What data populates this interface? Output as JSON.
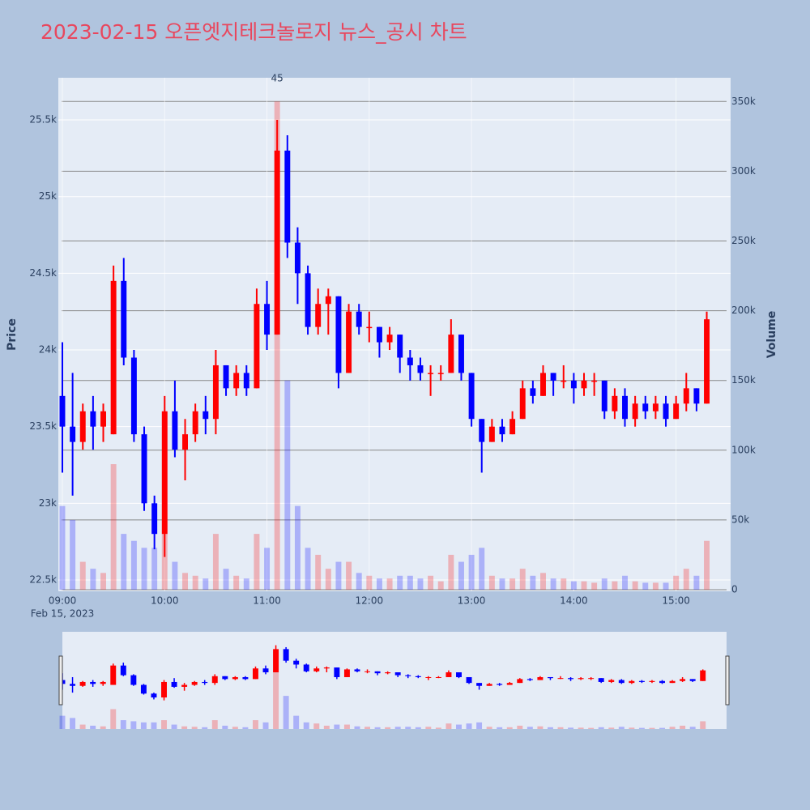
{
  "chart_data": {
    "type": "candlestick",
    "title": "2023-02-15 오픈엣지테크놀로지 뉴스_공시 차트",
    "y_label": "Price",
    "y2_label": "Volume",
    "x_date_label": "Feb 15, 2023",
    "increasing_color": "#ff0000",
    "decreasing_color": "#0000ff",
    "x": [
      "09:00",
      "09:06",
      "09:12",
      "09:18",
      "09:24",
      "09:30",
      "09:36",
      "09:42",
      "09:48",
      "09:54",
      "10:00",
      "10:06",
      "10:12",
      "10:18",
      "10:24",
      "10:30",
      "10:36",
      "10:42",
      "10:48",
      "10:54",
      "11:00",
      "11:06",
      "11:12",
      "11:18",
      "11:24",
      "11:30",
      "11:36",
      "11:42",
      "11:48",
      "11:54",
      "12:00",
      "12:06",
      "12:12",
      "12:18",
      "12:24",
      "12:30",
      "12:36",
      "12:42",
      "12:48",
      "12:54",
      "13:00",
      "13:06",
      "13:12",
      "13:18",
      "13:24",
      "13:30",
      "13:36",
      "13:42",
      "13:48",
      "13:54",
      "14:00",
      "14:06",
      "14:12",
      "14:18",
      "14:24",
      "14:30",
      "14:36",
      "14:42",
      "14:48",
      "14:54",
      "15:00",
      "15:06",
      "15:12",
      "15:18"
    ],
    "open": [
      23700,
      23500,
      23400,
      23600,
      23500,
      23450,
      24450,
      23950,
      23450,
      23000,
      22800,
      23600,
      23350,
      23450,
      23600,
      23550,
      23900,
      23750,
      23850,
      23750,
      24300,
      24100,
      25300,
      24700,
      24500,
      24150,
      24300,
      24350,
      23850,
      24250,
      24150,
      24150,
      24050,
      24100,
      23950,
      23900,
      23850,
      23850,
      23850,
      24100,
      23850,
      23550,
      23400,
      23500,
      23450,
      23550,
      23750,
      23700,
      23850,
      23800,
      23800,
      23750,
      23800,
      23800,
      23600,
      23700,
      23550,
      23650,
      23600,
      23650,
      23550,
      23650,
      23750,
      23650
    ],
    "high": [
      24050,
      23850,
      23650,
      23700,
      23650,
      24550,
      24600,
      24000,
      23500,
      23050,
      23700,
      23800,
      23550,
      23650,
      23700,
      24000,
      23900,
      23900,
      23900,
      24400,
      24450,
      25500,
      25400,
      24800,
      24550,
      24400,
      24400,
      24350,
      24300,
      24300,
      24250,
      24150,
      24150,
      24100,
      24000,
      23950,
      23900,
      23900,
      24200,
      24100,
      23850,
      23550,
      23550,
      23550,
      23600,
      23800,
      23800,
      23900,
      23850,
      23900,
      23850,
      23850,
      23850,
      23800,
      23750,
      23750,
      23700,
      23700,
      23700,
      23700,
      23700,
      23850,
      23750,
      24250
    ],
    "low": [
      23200,
      23050,
      23350,
      23350,
      23400,
      23450,
      23900,
      23400,
      22950,
      22700,
      22650,
      23300,
      23150,
      23400,
      23450,
      23450,
      23700,
      23700,
      23700,
      23750,
      24000,
      24100,
      24600,
      24300,
      24100,
      24100,
      24100,
      23750,
      23850,
      24100,
      24050,
      23950,
      24000,
      23850,
      23800,
      23800,
      23700,
      23800,
      23850,
      23800,
      23500,
      23200,
      23400,
      23400,
      23450,
      23550,
      23650,
      23700,
      23700,
      23750,
      23650,
      23700,
      23700,
      23550,
      23550,
      23500,
      23500,
      23550,
      23550,
      23500,
      23550,
      23600,
      23600,
      23650
    ],
    "close": [
      23500,
      23400,
      23600,
      23500,
      23600,
      24450,
      23950,
      23450,
      23000,
      22800,
      23600,
      23350,
      23450,
      23600,
      23550,
      23900,
      23750,
      23850,
      23750,
      24300,
      24100,
      25300,
      24700,
      24500,
      24150,
      24300,
      24350,
      23850,
      24250,
      24150,
      24150,
      24050,
      24100,
      23950,
      23900,
      23850,
      23850,
      23850,
      24100,
      23850,
      23550,
      23400,
      23500,
      23450,
      23550,
      23750,
      23700,
      23850,
      23800,
      23800,
      23750,
      23800,
      23800,
      23600,
      23700,
      23550,
      23650,
      23600,
      23650,
      23550,
      23650,
      23750,
      23650,
      24200
    ],
    "volume": [
      60000,
      50000,
      20000,
      15000,
      12000,
      90000,
      40000,
      35000,
      30000,
      30000,
      40000,
      20000,
      12000,
      10000,
      8000,
      40000,
      15000,
      10000,
      8000,
      40000,
      30000,
      350000,
      150000,
      60000,
      30000,
      25000,
      15000,
      20000,
      20000,
      12000,
      10000,
      8000,
      8000,
      10000,
      10000,
      8000,
      10000,
      6000,
      25000,
      20000,
      25000,
      30000,
      10000,
      8000,
      8000,
      15000,
      10000,
      12000,
      8000,
      8000,
      6000,
      6000,
      5000,
      8000,
      6000,
      10000,
      6000,
      5000,
      5000,
      5000,
      10000,
      15000,
      10000,
      35000
    ],
    "xlim": [
      "09:00",
      "15:32"
    ],
    "xticks": [
      "09:00",
      "10:00",
      "11:00",
      "12:00",
      "13:00",
      "14:00",
      "15:00"
    ],
    "ylim": [
      22426,
      25775
    ],
    "yticks": [
      {
        "value": 22500,
        "label": "22.5k"
      },
      {
        "value": 23000,
        "label": "23k"
      },
      {
        "value": 23500,
        "label": "23.5k"
      },
      {
        "value": 24000,
        "label": "24k"
      },
      {
        "value": 24500,
        "label": "24.5k"
      },
      {
        "value": 25000,
        "label": "25k"
      },
      {
        "value": 25500,
        "label": "25.5k"
      }
    ],
    "y2lim": [
      0,
      367000
    ],
    "y2ticks": [
      0,
      {
        "value": 50000,
        "label": "50k"
      },
      {
        "value": 100000,
        "label": "100k"
      },
      {
        "value": 150000,
        "label": "150k"
      },
      {
        "value": 200000,
        "label": "200k"
      },
      {
        "value": 250000,
        "label": "250k"
      },
      {
        "value": 300000,
        "label": "300k"
      },
      {
        "value": 350000,
        "label": "350k"
      }
    ],
    "annotations": [
      {
        "x": "11:06",
        "text": "45"
      }
    ]
  }
}
